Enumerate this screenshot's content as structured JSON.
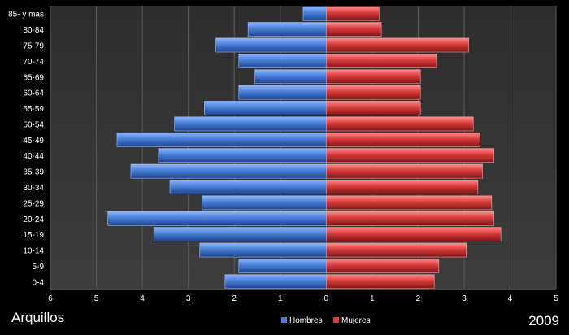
{
  "chart_data": {
    "type": "bar",
    "orientation": "horizontal",
    "categories": [
      "0-4",
      "5-9",
      "10-14",
      "15-19",
      "20-24",
      "25-29",
      "30-34",
      "35-39",
      "40-44",
      "45-49",
      "50-54",
      "55-59",
      "60-64",
      "65-69",
      "70-74",
      "75-79",
      "80-84",
      "85- y mas"
    ],
    "series": [
      {
        "name": "Hombres",
        "color": "#4a7fd6",
        "values": [
          2.2,
          1.9,
          2.75,
          3.75,
          4.75,
          2.7,
          3.4,
          4.25,
          3.65,
          4.55,
          3.3,
          2.65,
          1.9,
          1.55,
          1.9,
          2.4,
          1.7,
          0.5
        ]
      },
      {
        "name": "Mujeres",
        "color": "#d83b3b",
        "values": [
          2.35,
          2.45,
          3.05,
          3.8,
          3.65,
          3.6,
          3.3,
          3.4,
          3.65,
          3.35,
          3.2,
          2.05,
          2.05,
          2.05,
          2.4,
          3.1,
          1.2,
          1.15
        ]
      }
    ],
    "xlim": [
      -6,
      5
    ],
    "x_ticks": [
      -6,
      -5,
      -4,
      -3,
      -2,
      -1,
      0,
      1,
      2,
      3,
      4,
      5
    ],
    "x_tick_labels": [
      "6",
      "5",
      "4",
      "3",
      "2",
      "1",
      "0",
      "1",
      "2",
      "3",
      "4",
      "5"
    ],
    "grid": true,
    "legend_position": "bottom"
  },
  "annotations": {
    "place": "Arquillos",
    "year": "2009"
  }
}
